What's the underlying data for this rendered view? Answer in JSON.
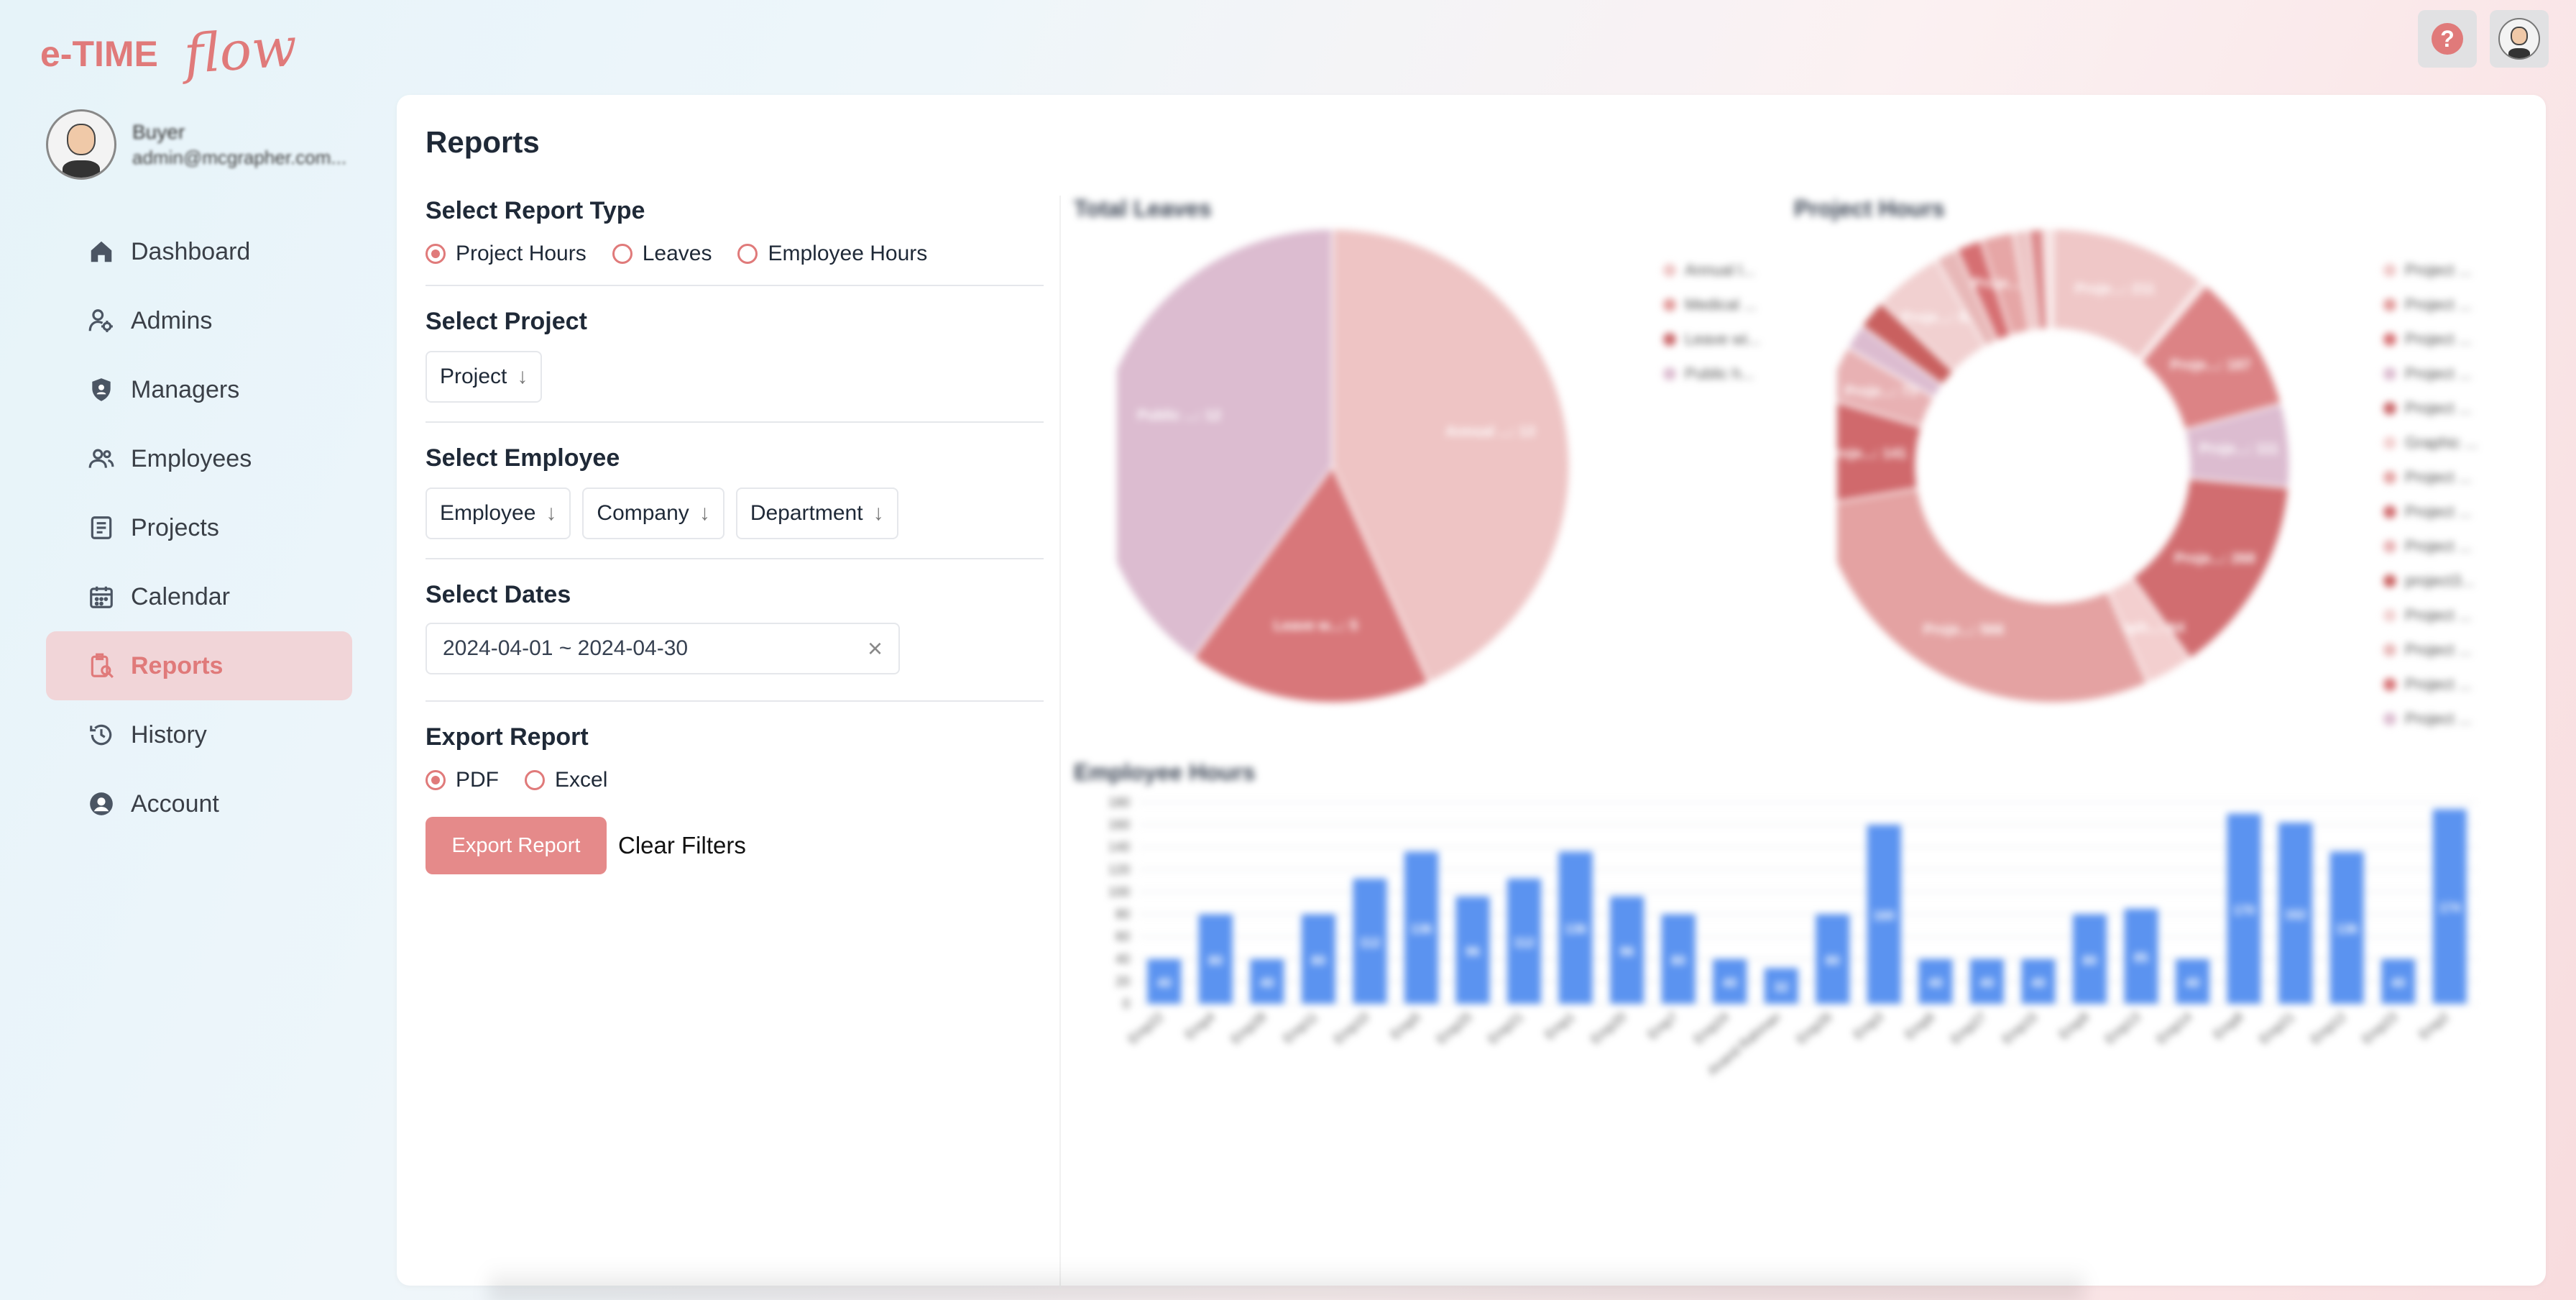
{
  "app": {
    "logo_text_main": "e-TIME",
    "logo_text_script": "flow"
  },
  "topbar": {
    "help_label": "?",
    "help_icon": "question-icon",
    "avatar_icon": "avatar-icon"
  },
  "profile": {
    "name": "Buyer",
    "email": "admin@mcgrapher.com..."
  },
  "sidebar": {
    "items": [
      {
        "label": "Dashboard",
        "icon": "home-icon",
        "active": false
      },
      {
        "label": "Admins",
        "icon": "admin-user-icon",
        "active": false
      },
      {
        "label": "Managers",
        "icon": "shield-icon",
        "active": false
      },
      {
        "label": "Employees",
        "icon": "users-icon",
        "active": false
      },
      {
        "label": "Projects",
        "icon": "document-icon",
        "active": false
      },
      {
        "label": "Calendar",
        "icon": "calendar-icon",
        "active": false
      },
      {
        "label": "Reports",
        "icon": "report-icon",
        "active": true
      },
      {
        "label": "History",
        "icon": "history-icon",
        "active": false
      },
      {
        "label": "Account",
        "icon": "account-circle-icon",
        "active": false
      }
    ]
  },
  "main": {
    "title": "Reports",
    "report_type": {
      "title": "Select Report Type",
      "options": [
        "Project Hours",
        "Leaves",
        "Employee Hours"
      ],
      "selected": "Project Hours"
    },
    "project": {
      "title": "Select Project",
      "select_label": "Project"
    },
    "employee": {
      "title": "Select Employee",
      "selects": [
        "Employee",
        "Company",
        "Department"
      ]
    },
    "dates": {
      "title": "Select Dates",
      "value": "2024-04-01 ~ 2024-04-30"
    },
    "export": {
      "title": "Export Report",
      "options": [
        "PDF",
        "Excel"
      ],
      "selected": "PDF",
      "export_button": "Export Report",
      "clear_button": "Clear Filters"
    }
  },
  "colors": {
    "accent": "#e07a7a",
    "accent_light": "#f1d5d8",
    "bar": "#5b93f0"
  },
  "chart_data": [
    {
      "type": "pie",
      "title": "Total Leaves",
      "slices": [
        {
          "label": "Annual ...: 13",
          "value": 13,
          "color": "#eec4c4"
        },
        {
          "label": "Leave w...: 5",
          "value": 5,
          "color": "#d8777a"
        },
        {
          "label": "Public ...: 12",
          "value": 12,
          "color": "#dcbcd0"
        }
      ],
      "legend": [
        "Annual l...",
        "Medical ...",
        "Leave wi...",
        "Public h..."
      ],
      "legend_colors": [
        "#eec4c4",
        "#e29a9a",
        "#c96467",
        "#dcbcd0"
      ],
      "legend_position": "right"
    },
    {
      "type": "pie",
      "title": "Project Hours",
      "donut": true,
      "slices": [
        {
          "label": "Proje...: 211",
          "value": 211,
          "color": "#efc7c7"
        },
        {
          "label": "",
          "value": 8,
          "color": "#f5dada"
        },
        {
          "label": "Proje...: 187",
          "value": 187,
          "color": "#dc8385"
        },
        {
          "label": "Proje...: 111",
          "value": 111,
          "color": "#dcbcd0"
        },
        {
          "label": "Proje...: 268",
          "value": 268,
          "color": "#d16d70"
        },
        {
          "label": "Graph...: 64",
          "value": 64,
          "color": "#f3cfcf"
        },
        {
          "label": "Proje...: 566",
          "value": 566,
          "color": "#e4a2a2"
        },
        {
          "label": "Proje...: 141",
          "value": 141,
          "color": "#d0696c"
        },
        {
          "label": "Proje...: 73",
          "value": 73,
          "color": "#e8b1b3"
        },
        {
          "label": "",
          "value": 34,
          "color": "#dcbcd0"
        },
        {
          "label": "",
          "value": 40,
          "color": "#c9605f"
        },
        {
          "label": "Proje...: 92",
          "value": 92,
          "color": "#f1d0d0"
        },
        {
          "label": "",
          "value": 30,
          "color": "#e8b8b8"
        },
        {
          "label": "",
          "value": 34,
          "color": "#d66f72"
        },
        {
          "label": "Proje...: 44",
          "value": 44,
          "color": "#e6a6a6"
        },
        {
          "label": "",
          "value": 20,
          "color": "#ecc3c3"
        },
        {
          "label": "",
          "value": 20,
          "color": "#dc8a8c"
        },
        {
          "label": "",
          "value": 12,
          "color": "#f6e0e0"
        }
      ],
      "legend": [
        "Project ...",
        "Project ...",
        "Project ...",
        "Project ...",
        "Project ...",
        "Graphic ...",
        "Project ...",
        "Project ...",
        "Project ...",
        "project3...",
        "Project ...",
        "Project ...",
        "Project ...",
        "Project ..."
      ],
      "legend_colors": [
        "#efc7c7",
        "#e29a9a",
        "#d66f72",
        "#dcbcd0",
        "#c96467",
        "#f3cfcf",
        "#e4a2a2",
        "#d0696c",
        "#e8b1b3",
        "#c9605f",
        "#f1d0d0",
        "#e8b8b8",
        "#d66f72",
        "#dcbcd0"
      ],
      "legend_position": "right"
    },
    {
      "type": "bar",
      "title": "Employee Hours",
      "categories": [
        "Emp22",
        "Emp4",
        "Emp28",
        "Emp11",
        "Emp10",
        "Emp5",
        "Emp25",
        "Emp21",
        "Emp1",
        "Emp20",
        "Emp7",
        "Emp24",
        "Anand Rahman",
        "Emp26",
        "Emp3",
        "Emp6",
        "Emp27",
        "Emp15",
        "Emp9",
        "Emp13",
        "Emp14",
        "Emp8",
        "Emp21",
        "Emp12",
        "Emp23",
        "Emp2"
      ],
      "values": [
        40,
        80,
        40,
        80,
        112,
        136,
        96,
        112,
        136,
        96,
        80,
        40,
        32,
        80,
        160,
        40,
        40,
        40,
        80,
        85,
        40,
        170,
        162,
        136,
        40,
        174
      ],
      "ylim": [
        0,
        180
      ],
      "yticks": [
        0,
        20,
        40,
        60,
        80,
        100,
        120,
        140,
        160,
        180
      ],
      "grid": true
    }
  ]
}
